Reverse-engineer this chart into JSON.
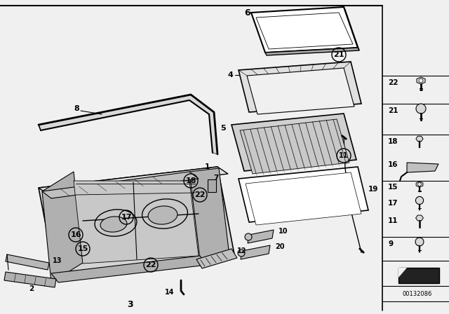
{
  "bg_color": "#f0f0f0",
  "white": "#ffffff",
  "black": "#000000",
  "diagram_id": "00132086",
  "fig_width": 6.4,
  "fig_height": 4.48
}
